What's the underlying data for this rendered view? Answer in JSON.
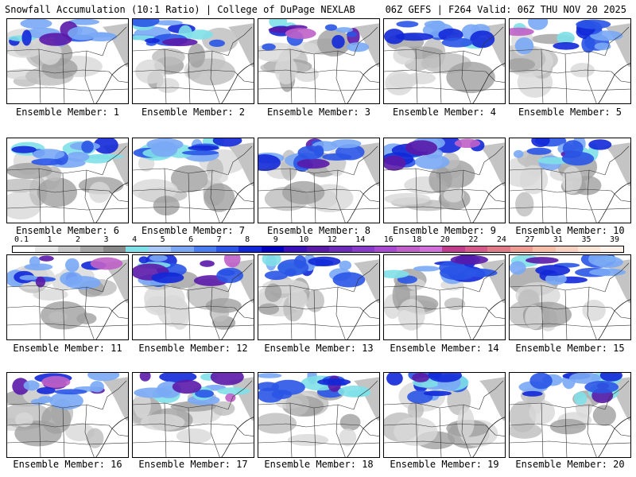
{
  "header": {
    "title_left": "Snowfall Accumulation (10:1 Ratio) | College of DuPage NEXLAB",
    "title_right": "06Z GEFS | F264 Valid: 06Z THU NOV 20 2025"
  },
  "colorbar": {
    "tick_labels": [
      "0.1",
      "1",
      "2",
      "3",
      "4",
      "5",
      "6",
      "7",
      "8",
      "9",
      "10",
      "12",
      "14",
      "16",
      "18",
      "20",
      "22",
      "24",
      "27",
      "31",
      "35",
      "39"
    ],
    "colors": [
      "#ffffff",
      "#e6e6e6",
      "#c8c8c8",
      "#a8a8a8",
      "#8a8a8a",
      "#7fe0e8",
      "#a9c8f8",
      "#7aa8f5",
      "#4a7ef0",
      "#2a55e6",
      "#1228d8",
      "#0000c0",
      "#3a10b8",
      "#5a1aa8",
      "#6e2ab8",
      "#8a3ac8",
      "#a84ad0",
      "#c060c8",
      "#d070d8",
      "#c03c8c",
      "#d45a8c",
      "#e07c88",
      "#ec9c90",
      "#f5bca8",
      "#f8d2c0",
      "#fae4d4",
      "#fdf0e6"
    ]
  },
  "members": [
    {
      "label": "Ensemble Member: 1",
      "intensity": 0.6
    },
    {
      "label": "Ensemble Member: 2",
      "intensity": 0.65
    },
    {
      "label": "Ensemble Member: 3",
      "intensity": 0.8
    },
    {
      "label": "Ensemble Member: 4",
      "intensity": 0.55
    },
    {
      "label": "Ensemble Member: 5",
      "intensity": 0.75
    },
    {
      "label": "Ensemble Member: 6",
      "intensity": 0.65
    },
    {
      "label": "Ensemble Member: 7",
      "intensity": 0.5
    },
    {
      "label": "Ensemble Member: 8",
      "intensity": 0.8
    },
    {
      "label": "Ensemble Member: 9",
      "intensity": 0.7
    },
    {
      "label": "Ensemble Member: 10",
      "intensity": 0.6
    },
    {
      "label": "Ensemble Member: 11",
      "intensity": 0.75
    },
    {
      "label": "Ensemble Member: 12",
      "intensity": 0.9
    },
    {
      "label": "Ensemble Member: 13",
      "intensity": 0.55
    },
    {
      "label": "Ensemble Member: 14",
      "intensity": 0.6
    },
    {
      "label": "Ensemble Member: 15",
      "intensity": 0.6
    },
    {
      "label": "Ensemble Member: 16",
      "intensity": 0.85
    },
    {
      "label": "Ensemble Member: 17",
      "intensity": 0.8
    },
    {
      "label": "Ensemble Member: 18",
      "intensity": 0.55
    },
    {
      "label": "Ensemble Member: 19",
      "intensity": 0.6
    },
    {
      "label": "Ensemble Member: 20",
      "intensity": 0.65
    }
  ]
}
